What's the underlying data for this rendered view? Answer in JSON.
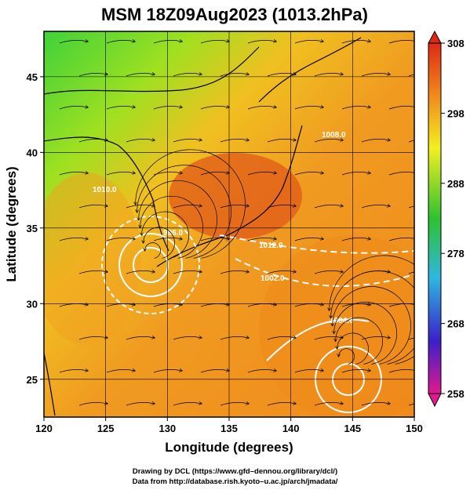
{
  "title": "MSM 18Z09Aug2023 (1013.2hPa)",
  "map": {
    "x_axis": {
      "label": "Longitude (degrees)",
      "range": [
        120,
        150
      ],
      "ticks": [
        "120",
        "125",
        "130",
        "135",
        "140",
        "145",
        "150"
      ]
    },
    "y_axis": {
      "label": "Latitude  (degrees)",
      "range": [
        22.5,
        48
      ],
      "ticks": [
        "25",
        "30",
        "35",
        "40",
        "45"
      ]
    },
    "grid": true,
    "variable_field": "temperature (K), colour shaded, with streamlines and white isobar contours"
  },
  "colorbar": {
    "ticks": [
      "308",
      "298",
      "288",
      "278",
      "268",
      "258"
    ],
    "range": [
      258,
      308
    ],
    "colors": [
      "#e2188f",
      "#2236c8",
      "#2fb7e0",
      "#2fc12f",
      "#f3ef21",
      "#f08a1c",
      "#dc2a16"
    ]
  },
  "isobar_labels": [
    "1012.0",
    "1002.0",
    "1004.0",
    "996.0",
    "1008.0",
    "1010.0"
  ],
  "lows": [
    {
      "lon": 128.3,
      "lat": 33.0
    },
    {
      "lon": 144.0,
      "lat": 26.0
    }
  ],
  "colors": {
    "land_line": "#000000",
    "isobar": "#ffffff",
    "background": "#ffffff"
  },
  "credits": {
    "line1": "Drawing by DCL (https://www.gfd–dennou.org/library/dcl/)",
    "line2": "Data from http://database.rish.kyoto–u.ac.jp/arch/jmadata/"
  }
}
